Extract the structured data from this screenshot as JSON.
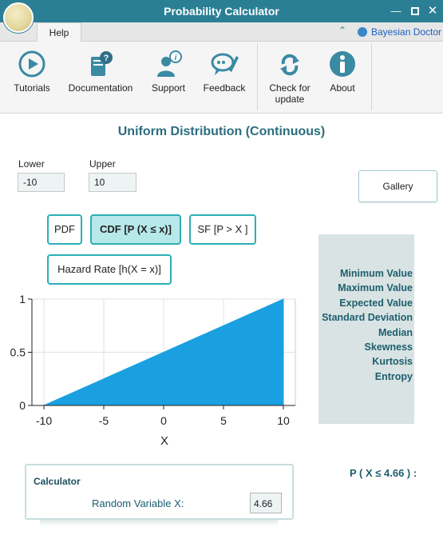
{
  "window": {
    "title": "Probability Calculator",
    "minimize_glyph": "—",
    "close_glyph": "✕"
  },
  "ribbon_tabs": {
    "help_label": "Help",
    "collapse_glyph": "⌃",
    "user_label": "Bayesian Doctor"
  },
  "ribbon": {
    "tutorials": "Tutorials",
    "documentation": "Documentation",
    "support": "Support",
    "feedback": "Feedback",
    "check_update_line1": "Check for",
    "check_update_line2": "update",
    "about": "About"
  },
  "main": {
    "heading": "Uniform Distribution (Continuous)",
    "lower_label": "Lower",
    "lower_value": "-10",
    "upper_label": "Upper",
    "upper_value": "10",
    "gallery_label": "Gallery",
    "buttons": {
      "pdf": "PDF",
      "cdf": "CDF [P (X ≤ x)]",
      "sf": "SF [P > X ]",
      "hazard": "Hazard Rate [h(X = x)]"
    },
    "stats": [
      "Minimum Value",
      "Maximum Value",
      "Expected Value",
      "Standard Deviation",
      "Median",
      "Skewness",
      "Kurtosis",
      "Entropy"
    ],
    "probability_label": "P ( X ≤ 4.66 ) :"
  },
  "calculator": {
    "title": "Calculator",
    "rv_label": "Random Variable X:",
    "rv_value": "4.66"
  },
  "colors": {
    "accent": "#2b7f95",
    "fill": "#1aa0e0",
    "button_border": "#2bb0b5"
  },
  "chart_data": {
    "type": "area",
    "x": [
      -10,
      10
    ],
    "y": [
      0,
      1
    ],
    "xlim": [
      -11,
      11
    ],
    "ylim": [
      0,
      1
    ],
    "xticks": [
      -10,
      -5,
      0,
      5,
      10
    ],
    "yticks": [
      0,
      0.5,
      1
    ],
    "xtick_labels": [
      "-10",
      "-5",
      "0",
      "5",
      "10"
    ],
    "ytick_labels": [
      "0",
      "0.5",
      "1"
    ],
    "xlabel": "X",
    "ylabel": "",
    "grid": true
  }
}
